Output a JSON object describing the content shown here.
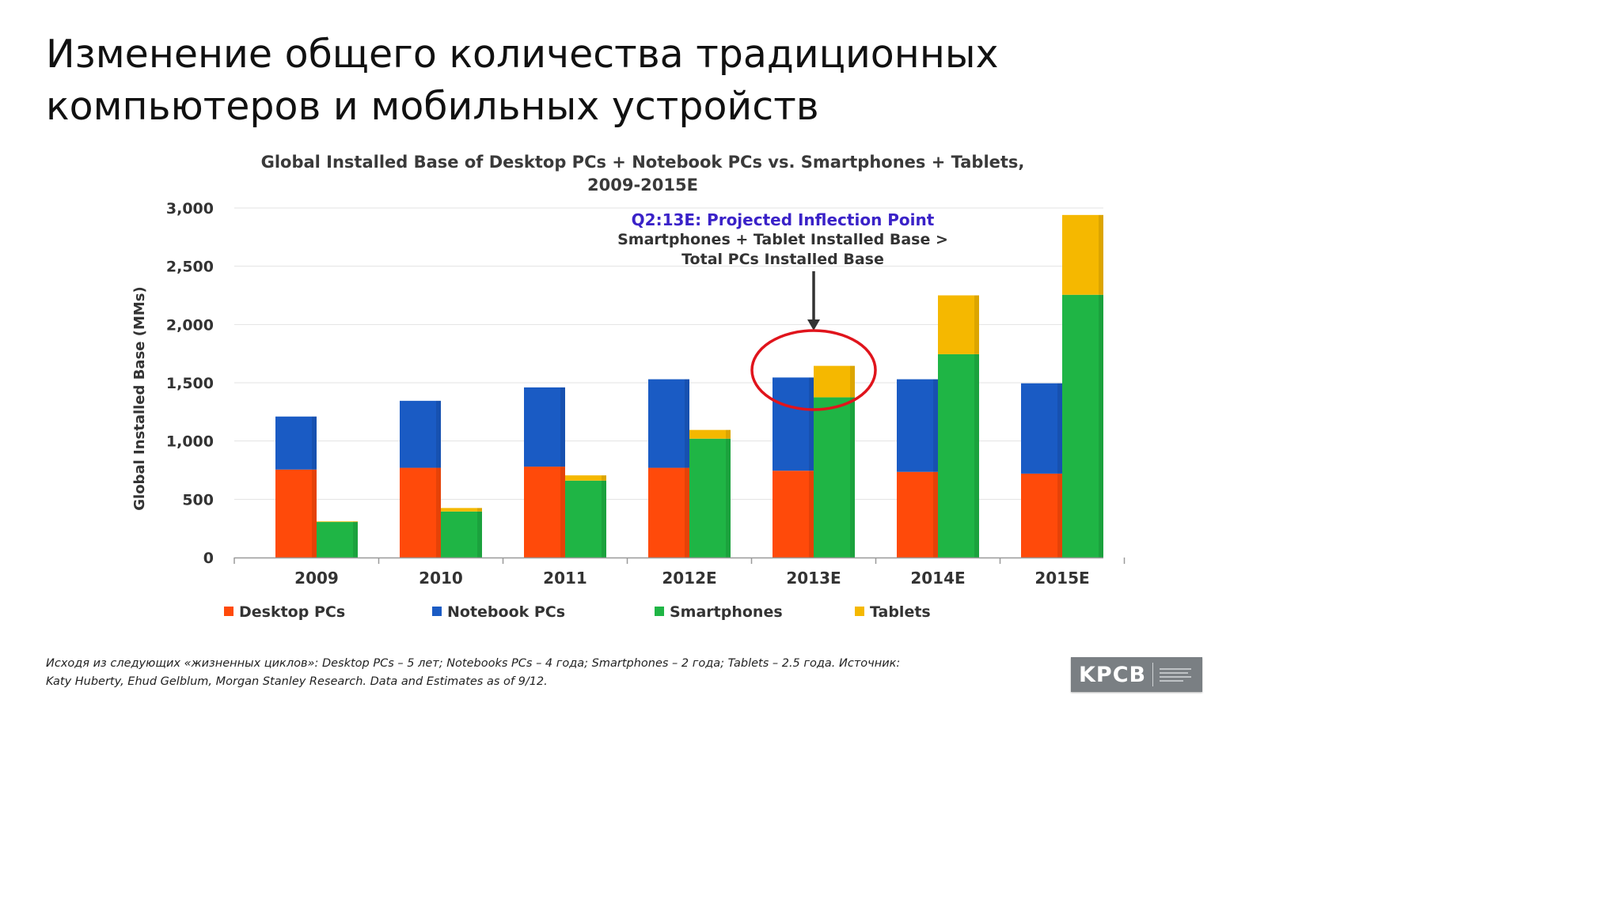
{
  "slide": {
    "title_line1": "Изменение общего количества традиционных",
    "title_line2": "компьютеров и мобильных устройств",
    "footnote_line1": "Исходя из следующих «жизненных циклов»: Desktop PCs – 5 лет; Notebooks PCs – 4 года; Smartphones – 2 года; Tablets – 2.5 года. Источник:",
    "footnote_line2": "Katy Huberty, Ehud Gelblum, Morgan Stanley Research. Data and Estimates as of 9/12.",
    "logo_text": "KPCB"
  },
  "chart_data": {
    "type": "bar",
    "stacked": true,
    "title_line1": "Global Installed Base of Desktop PCs + Notebook PCs vs. Smartphones + Tablets,",
    "title_line2": "2009-2015E",
    "ylabel": "Global Installed Base (MMs)",
    "xlabel": "",
    "ylim": [
      0,
      3000
    ],
    "yticks": [
      "0",
      "500",
      "1,000",
      "1,500",
      "2,000",
      "2,500",
      "3,000"
    ],
    "ytick_values": [
      0,
      500,
      1000,
      1500,
      2000,
      2500,
      3000
    ],
    "grid": true,
    "legend_position": "bottom",
    "categories": [
      "2009",
      "2010",
      "2011",
      "2012E",
      "2013E",
      "2014E",
      "2015E"
    ],
    "series": [
      {
        "name": "Desktop PCs",
        "stack": "pc",
        "color": "#ff4a0a",
        "values": [
          755,
          770,
          780,
          770,
          745,
          735,
          720
        ]
      },
      {
        "name": "Notebook PCs",
        "stack": "pc",
        "color": "#1a5bc4",
        "values": [
          455,
          575,
          680,
          760,
          800,
          795,
          775
        ]
      },
      {
        "name": "Smartphones",
        "stack": "mobile",
        "color": "#1fb545",
        "values": [
          305,
          395,
          660,
          1020,
          1375,
          1745,
          2255
        ]
      },
      {
        "name": "Tablets",
        "stack": "mobile",
        "color": "#f5b800",
        "values": [
          5,
          30,
          45,
          75,
          270,
          505,
          685
        ]
      }
    ],
    "annotation": {
      "line1": "Q2:13E: Projected Inflection Point",
      "line2": "Smartphones + Tablet Installed Base >",
      "line3": "Total PCs Installed Base",
      "category": "2013E",
      "arrow_color": "#333333",
      "circle_color": "#e0141c"
    }
  }
}
